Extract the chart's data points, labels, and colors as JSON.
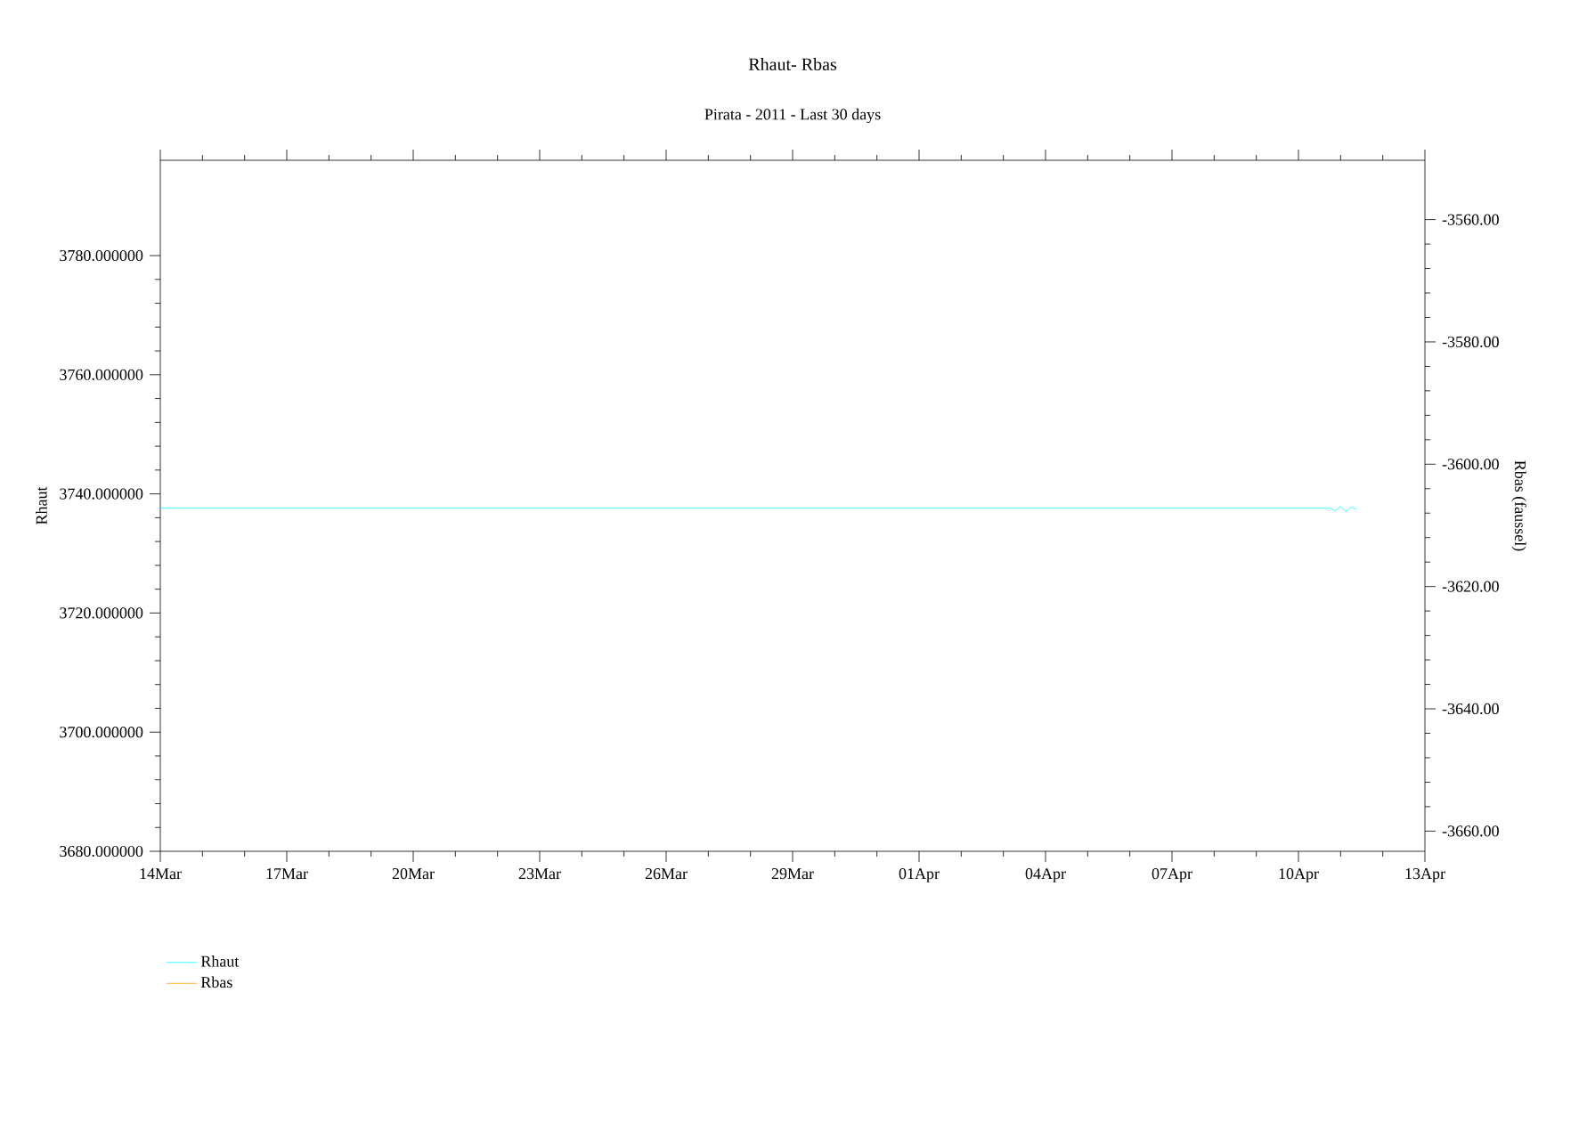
{
  "chart_data": {
    "type": "line",
    "title": "Rhaut-  Rbas",
    "subtitle": "Pirata - 2011 - Last 30 days",
    "ylabel": "Rhaut",
    "y2label": "Rbas (faussel)",
    "x": [
      "2011-03-14T00:00",
      "2011-03-20T00:00",
      "2011-03-26T00:00",
      "2011-04-01T00:00",
      "2011-04-07T00:00",
      "2011-04-10T18:00",
      "2011-04-10T21:00",
      "2011-04-11T00:00",
      "2011-04-11T03:00",
      "2011-04-11T06:00",
      "2011-04-11T09:00"
    ],
    "series": [
      {
        "name": "Rhaut",
        "color": "#00ffff",
        "values": [
          3737.6,
          3737.6,
          3737.6,
          3737.6,
          3737.6,
          3737.6,
          3737.2,
          3737.9,
          3737.0,
          3737.8,
          3737.4
        ]
      },
      {
        "name": "Rbas",
        "color": "#ffa500",
        "axis": "y2",
        "values": [
          null,
          null,
          null,
          null,
          null,
          null,
          null,
          null,
          null,
          null,
          null
        ]
      }
    ],
    "xlim": [
      "2011-03-14",
      "2011-04-13"
    ],
    "xticks": [
      {
        "value": "2011-03-14",
        "label": "14Mar"
      },
      {
        "value": "2011-03-17",
        "label": "17Mar"
      },
      {
        "value": "2011-03-20",
        "label": "20Mar"
      },
      {
        "value": "2011-03-23",
        "label": "23Mar"
      },
      {
        "value": "2011-03-26",
        "label": "26Mar"
      },
      {
        "value": "2011-03-29",
        "label": "29Mar"
      },
      {
        "value": "2011-04-01",
        "label": "01Apr"
      },
      {
        "value": "2011-04-04",
        "label": "04Apr"
      },
      {
        "value": "2011-04-07",
        "label": "07Apr"
      },
      {
        "value": "2011-04-10",
        "label": "10Apr"
      },
      {
        "value": "2011-04-13",
        "label": "13Apr"
      }
    ],
    "ylim": [
      3680,
      3796
    ],
    "yticks": [
      {
        "value": 3680,
        "label": "3680.000000"
      },
      {
        "value": 3700,
        "label": "3700.000000"
      },
      {
        "value": 3720,
        "label": "3720.000000"
      },
      {
        "value": 3740,
        "label": "3740.000000"
      },
      {
        "value": 3760,
        "label": "3760.000000"
      },
      {
        "value": 3780,
        "label": "3780.000000"
      }
    ],
    "y2lim": [
      -3663.3,
      -3550.3
    ],
    "y2ticks": [
      {
        "value": -3660,
        "label": "-3660.00"
      },
      {
        "value": -3640,
        "label": "-3640.00"
      },
      {
        "value": -3620,
        "label": "-3620.00"
      },
      {
        "value": -3600,
        "label": "-3600.00"
      },
      {
        "value": -3580,
        "label": "-3580.00"
      },
      {
        "value": -3560,
        "label": "-3560.00"
      }
    ],
    "legend": "bottom left",
    "grid": false,
    "marker": "none",
    "line_style": "solid"
  }
}
